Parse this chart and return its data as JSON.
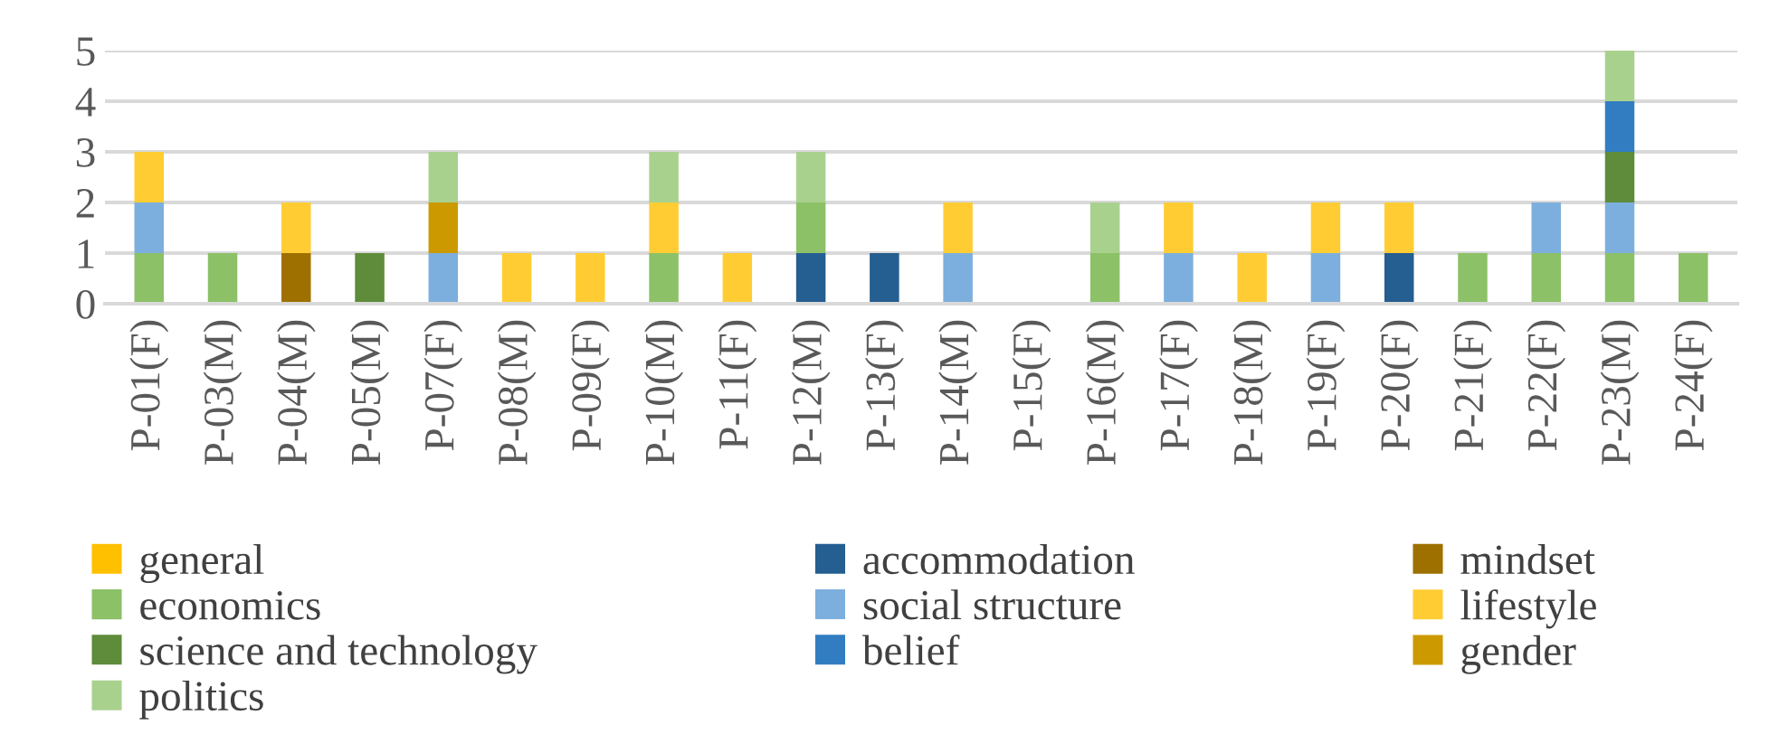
{
  "chart_data": {
    "type": "bar",
    "stacked": true,
    "categories": [
      "P-01(F)",
      "P-03(M)",
      "P-04(M)",
      "P-05(M)",
      "P-07(F)",
      "P-08(M)",
      "P-09(F)",
      "P-10(M)",
      "P-11(F)",
      "P-12(M)",
      "P-13(F)",
      "P-14(M)",
      "P-15(F)",
      "P-16(M)",
      "P-17(F)",
      "P-18(M)",
      "P-19(F)",
      "P-20(F)",
      "P-21(F)",
      "P-22(F)",
      "P-23(M)",
      "P-24(F)"
    ],
    "series": [
      {
        "name": "general",
        "color": "#ffc000",
        "values": [
          0,
          0,
          0,
          0,
          0,
          0,
          0,
          0,
          0,
          0,
          0,
          0,
          0,
          0,
          0,
          0,
          0,
          0,
          0,
          0,
          0,
          0
        ]
      },
      {
        "name": "accommodation",
        "color": "#255e91",
        "values": [
          0,
          0,
          0,
          0,
          0,
          0,
          0,
          0,
          0,
          1,
          1,
          0,
          0,
          0,
          0,
          0,
          0,
          1,
          0,
          0,
          0,
          0
        ]
      },
      {
        "name": "mindset",
        "color": "#9e7000",
        "values": [
          0,
          0,
          1,
          0,
          0,
          0,
          0,
          0,
          0,
          0,
          0,
          0,
          0,
          0,
          0,
          0,
          0,
          0,
          0,
          0,
          0,
          0
        ]
      },
      {
        "name": "economics",
        "color": "#8cc168",
        "values": [
          1,
          1,
          0,
          0,
          0,
          0,
          0,
          1,
          0,
          1,
          0,
          0,
          0,
          1,
          0,
          0,
          0,
          0,
          1,
          1,
          1,
          1
        ]
      },
      {
        "name": "social structure",
        "color": "#7cafdd",
        "values": [
          1,
          0,
          0,
          0,
          1,
          0,
          0,
          0,
          0,
          0,
          0,
          1,
          0,
          0,
          1,
          0,
          1,
          0,
          0,
          1,
          1,
          0
        ]
      },
      {
        "name": "lifestyle",
        "color": "#ffcd33",
        "values": [
          1,
          0,
          1,
          0,
          0,
          1,
          1,
          1,
          1,
          0,
          0,
          1,
          0,
          0,
          1,
          1,
          1,
          1,
          0,
          0,
          0,
          0
        ]
      },
      {
        "name": "science and technology",
        "color": "#5e8c3a",
        "values": [
          0,
          0,
          0,
          1,
          0,
          0,
          0,
          0,
          0,
          0,
          0,
          0,
          0,
          0,
          0,
          0,
          0,
          0,
          0,
          0,
          1,
          0
        ]
      },
      {
        "name": "belief",
        "color": "#327dc2",
        "values": [
          0,
          0,
          0,
          0,
          0,
          0,
          0,
          0,
          0,
          0,
          0,
          0,
          0,
          0,
          0,
          0,
          0,
          0,
          0,
          0,
          1,
          0
        ]
      },
      {
        "name": "gender",
        "color": "#cc9a00",
        "values": [
          0,
          0,
          0,
          0,
          1,
          0,
          0,
          0,
          0,
          0,
          0,
          0,
          0,
          0,
          0,
          0,
          0,
          0,
          0,
          0,
          0,
          0
        ]
      },
      {
        "name": "politics",
        "color": "#a9d18e",
        "values": [
          0,
          0,
          0,
          0,
          1,
          0,
          0,
          1,
          0,
          1,
          0,
          0,
          0,
          1,
          0,
          0,
          0,
          0,
          0,
          0,
          1,
          0
        ]
      }
    ],
    "ylim": [
      0,
      5
    ],
    "yticks": [
      0,
      1,
      2,
      3,
      4,
      5
    ],
    "grid": "y",
    "legend": "bottom"
  }
}
